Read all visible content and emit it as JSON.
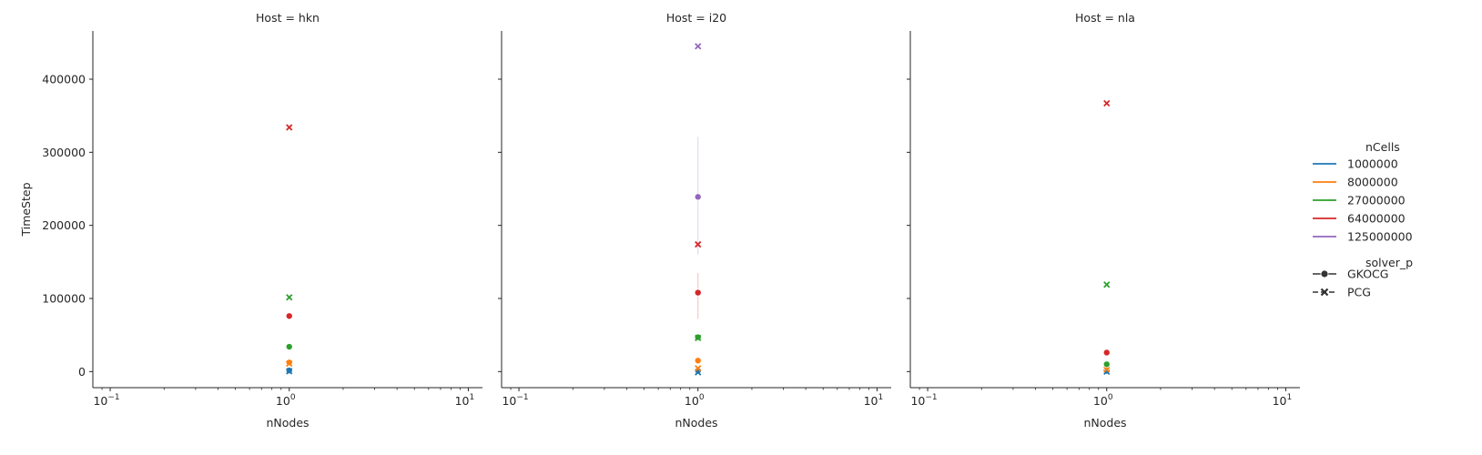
{
  "chart_data": {
    "type": "scatter",
    "facet_label_prefix": "Host = ",
    "facets": [
      "hkn",
      "i20",
      "nla"
    ],
    "xlabel": "nNodes",
    "ylabel": "TimeStep",
    "xscale": "log",
    "xlim": [
      0.08,
      12
    ],
    "ylim": [
      -22000,
      466000
    ],
    "x_ticks": [
      {
        "value": 0.1,
        "base": "10",
        "exp": "−1"
      },
      {
        "value": 1,
        "base": "10",
        "exp": "0"
      },
      {
        "value": 10,
        "base": "10",
        "exp": "1"
      }
    ],
    "y_ticks": [
      0,
      100000,
      200000,
      300000,
      400000
    ],
    "y_tick_labels": [
      "0",
      "100000",
      "200000",
      "300000",
      "400000"
    ],
    "grid": false,
    "legend": {
      "placement": "right",
      "hue_title": "nCells",
      "hue_entries": [
        {
          "label": "1000000",
          "color": "#1f77b4"
        },
        {
          "label": "8000000",
          "color": "#ff7f0e"
        },
        {
          "label": "27000000",
          "color": "#2ca02c"
        },
        {
          "label": "64000000",
          "color": "#d62728"
        },
        {
          "label": "125000000",
          "color": "#9467bd"
        }
      ],
      "style_title": "solver_p",
      "style_entries": [
        {
          "label": "GKOCG",
          "marker": "circle",
          "dash": "solid"
        },
        {
          "label": "PCG",
          "marker": "x",
          "dash": "dashed"
        }
      ]
    },
    "points": [
      {
        "host": "hkn",
        "nCells": "1000000",
        "solver": "GKOCG",
        "x": 1,
        "y": 1500
      },
      {
        "host": "hkn",
        "nCells": "1000000",
        "solver": "PCG",
        "x": 1,
        "y": 500
      },
      {
        "host": "hkn",
        "nCells": "8000000",
        "solver": "GKOCG",
        "x": 1,
        "y": 12500
      },
      {
        "host": "hkn",
        "nCells": "8000000",
        "solver": "PCG",
        "x": 1,
        "y": 11000
      },
      {
        "host": "hkn",
        "nCells": "27000000",
        "solver": "GKOCG",
        "x": 1,
        "y": 34000
      },
      {
        "host": "hkn",
        "nCells": "27000000",
        "solver": "PCG",
        "x": 1,
        "y": 101500
      },
      {
        "host": "hkn",
        "nCells": "64000000",
        "solver": "GKOCG",
        "x": 1,
        "y": 76000
      },
      {
        "host": "hkn",
        "nCells": "64000000",
        "solver": "PCG",
        "x": 1,
        "y": 334000
      },
      {
        "host": "i20",
        "nCells": "1000000",
        "solver": "GKOCG",
        "x": 1,
        "y": 1000
      },
      {
        "host": "i20",
        "nCells": "1000000",
        "solver": "PCG",
        "x": 1,
        "y": -1000
      },
      {
        "host": "i20",
        "nCells": "8000000",
        "solver": "GKOCG",
        "x": 1,
        "y": 15000
      },
      {
        "host": "i20",
        "nCells": "8000000",
        "solver": "PCG",
        "x": 1,
        "y": 4500
      },
      {
        "host": "i20",
        "nCells": "27000000",
        "solver": "GKOCG",
        "x": 1,
        "y": 47000
      },
      {
        "host": "i20",
        "nCells": "27000000",
        "solver": "PCG",
        "x": 1,
        "y": 46000
      },
      {
        "host": "i20",
        "nCells": "64000000",
        "solver": "GKOCG",
        "x": 1,
        "y": 108000,
        "ci": [
          72000,
          135000
        ]
      },
      {
        "host": "i20",
        "nCells": "64000000",
        "solver": "PCG",
        "x": 1,
        "y": 174000
      },
      {
        "host": "i20",
        "nCells": "125000000",
        "solver": "GKOCG",
        "x": 1,
        "y": 239000,
        "ci": [
          160000,
          321000
        ]
      },
      {
        "host": "i20",
        "nCells": "125000000",
        "solver": "PCG",
        "x": 1,
        "y": 445000
      },
      {
        "host": "nla",
        "nCells": "1000000",
        "solver": "GKOCG",
        "x": 1,
        "y": 1000
      },
      {
        "host": "nla",
        "nCells": "1000000",
        "solver": "PCG",
        "x": 1,
        "y": 0
      },
      {
        "host": "nla",
        "nCells": "8000000",
        "solver": "GKOCG",
        "x": 1,
        "y": 6000
      },
      {
        "host": "nla",
        "nCells": "8000000",
        "solver": "PCG",
        "x": 1,
        "y": 3000
      },
      {
        "host": "nla",
        "nCells": "27000000",
        "solver": "GKOCG",
        "x": 1,
        "y": 10000
      },
      {
        "host": "nla",
        "nCells": "27000000",
        "solver": "PCG",
        "x": 1,
        "y": 119000
      },
      {
        "host": "nla",
        "nCells": "64000000",
        "solver": "GKOCG",
        "x": 1,
        "y": 26000
      },
      {
        "host": "nla",
        "nCells": "64000000",
        "solver": "PCG",
        "x": 1,
        "y": 367000
      }
    ]
  }
}
